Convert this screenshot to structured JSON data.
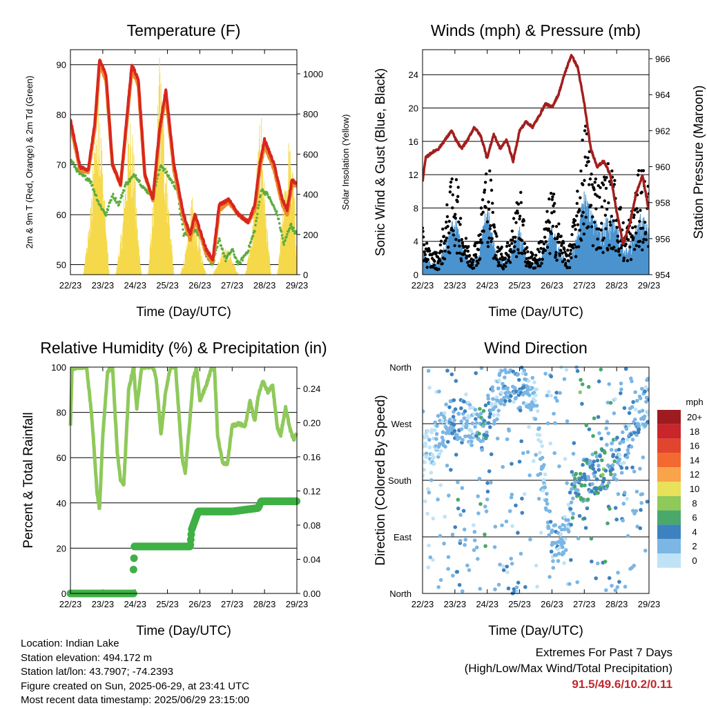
{
  "x_ticks": [
    "22/23",
    "23/23",
    "24/23",
    "25/23",
    "26/23",
    "27/23",
    "28/23",
    "29/23"
  ],
  "chart_data": [
    {
      "type": "line",
      "title": "Temperature (F)",
      "xlabel": "Time (Day/UTC)",
      "ylabel": "2m & 9m T (Red, Orange) & 2m Td (Green)",
      "y2label": "Solar Insolation (Yellow)",
      "ylim": [
        48,
        93
      ],
      "y_ticks": [
        50,
        60,
        70,
        80,
        90
      ],
      "y2lim": [
        0,
        1120
      ],
      "y2_ticks": [
        0,
        200,
        400,
        600,
        800,
        1000
      ],
      "series": [
        {
          "color": "#d8261f",
          "x": [
            22.0,
            22.3,
            22.55,
            22.75,
            22.9,
            23.1,
            23.3,
            23.55,
            23.75,
            23.9,
            24.1,
            24.3,
            24.55,
            24.75,
            24.95,
            25.2,
            25.5,
            25.7,
            25.85,
            26.0,
            26.2,
            26.4,
            26.6,
            26.9,
            27.2,
            27.5,
            27.7,
            27.85,
            28.0,
            28.3,
            28.55,
            28.7,
            28.85,
            29.0
          ],
          "y": [
            79,
            69.5,
            69,
            78,
            91,
            88,
            70,
            66,
            80,
            90,
            87,
            68,
            63,
            77,
            85,
            70,
            60,
            56,
            60,
            57,
            53,
            51,
            62,
            63,
            60,
            58.5,
            62,
            70,
            75,
            70,
            63,
            61,
            67,
            66
          ]
        },
        {
          "color": "#ee8a2c",
          "x": [
            22.0,
            22.3,
            22.55,
            22.75,
            22.9,
            23.1,
            23.3,
            23.55,
            23.75,
            23.9,
            24.1,
            24.3,
            24.55,
            24.75,
            24.95,
            25.2,
            25.5,
            25.7,
            25.85,
            26.0,
            26.2,
            26.4,
            26.6,
            26.9,
            27.2,
            27.5,
            27.7,
            27.85,
            28.0,
            28.3,
            28.55,
            28.7,
            28.85,
            29.0
          ],
          "y": [
            78,
            69,
            68.5,
            77,
            90,
            87,
            70,
            66,
            79,
            89,
            86,
            68,
            63,
            76,
            84,
            69,
            59,
            55,
            59,
            56.5,
            52,
            50.5,
            61,
            62.5,
            60,
            58.5,
            61,
            69,
            74,
            69,
            62,
            60,
            66,
            66
          ]
        },
        {
          "color": "#5cad3d",
          "dotted": true,
          "x": [
            22.0,
            22.3,
            22.6,
            22.9,
            23.1,
            23.3,
            23.5,
            23.7,
            24.0,
            24.3,
            24.55,
            24.8,
            25.0,
            25.3,
            25.5,
            25.8,
            26.0,
            26.2,
            26.4,
            26.6,
            26.8,
            27.0,
            27.2,
            27.5,
            27.7,
            27.9,
            28.1,
            28.4,
            28.6,
            28.8,
            29.0
          ],
          "y": [
            71,
            68,
            67,
            62,
            60,
            64,
            62,
            66,
            68,
            65,
            64,
            70,
            68,
            65,
            56,
            57,
            56,
            52,
            50,
            55,
            51,
            53,
            50,
            53,
            57,
            65,
            64,
            60,
            54,
            58,
            56
          ]
        },
        {
          "color": "#f5d94a",
          "name": "solar",
          "axis": "y2",
          "x": [
            22.0,
            22.2,
            22.4,
            22.6,
            22.75,
            22.9,
            23.05,
            23.2,
            23.4,
            23.6,
            23.75,
            23.9,
            24.05,
            24.2,
            24.4,
            24.6,
            24.75,
            24.9,
            25.05,
            25.2,
            25.4,
            25.6,
            25.75,
            25.9,
            26.05,
            26.2,
            26.4,
            26.6,
            26.75,
            26.9,
            27.05,
            27.2,
            27.4,
            27.6,
            27.75,
            27.9,
            28.05,
            28.2,
            28.4,
            28.6,
            28.75,
            28.9,
            29.0
          ],
          "y": [
            0,
            0,
            0,
            300,
            700,
            980,
            400,
            0,
            0,
            250,
            650,
            900,
            300,
            0,
            0,
            500,
            1120,
            800,
            350,
            0,
            0,
            150,
            400,
            300,
            120,
            0,
            0,
            80,
            150,
            120,
            60,
            0,
            0,
            200,
            550,
            850,
            300,
            0,
            0,
            400,
            700,
            500,
            100
          ]
        }
      ]
    },
    {
      "type": "scatter",
      "title": "Winds (mph) & Pressure (mb)",
      "xlabel": "Time (Day/UTC)",
      "ylabel": "Sonic Wind & Gust (Blue, Black)",
      "y2label": "Station Pressure (Maroon)",
      "ylim": [
        0,
        27
      ],
      "y_ticks": [
        0,
        4,
        8,
        12,
        16,
        20,
        24
      ],
      "y2lim": [
        954,
        966.5
      ],
      "y2_ticks": [
        954,
        956,
        958,
        960,
        962,
        964,
        966
      ],
      "pressure": {
        "color": "#a31e1e",
        "x": [
          22.0,
          22.1,
          22.3,
          22.5,
          22.7,
          22.9,
          23.0,
          23.2,
          23.4,
          23.6,
          23.8,
          24.0,
          24.2,
          24.4,
          24.6,
          24.8,
          25.0,
          25.2,
          25.4,
          25.6,
          25.8,
          26.0,
          26.2,
          26.4,
          26.6,
          26.8,
          27.0,
          27.2,
          27.4,
          27.6,
          27.8,
          28.0,
          28.2,
          28.4,
          28.6,
          28.8,
          29.0
        ],
        "y": [
          959.2,
          960.5,
          960.8,
          961.0,
          961.5,
          962.0,
          961.6,
          961.0,
          961.5,
          962.2,
          961.7,
          960.5,
          961.8,
          961.0,
          961.5,
          960.3,
          962.0,
          962.5,
          962.2,
          962.8,
          963.5,
          963.3,
          964.0,
          965.2,
          966.2,
          965.5,
          963.5,
          961.0,
          960.0,
          960.3,
          959.6,
          957.5,
          955.7,
          956.8,
          958.5,
          959.5,
          957.5
        ]
      },
      "sonic_color": "#4a93cf",
      "gust_color": "#000000",
      "sonic_mean": {
        "x": [
          22.0,
          22.25,
          22.5,
          22.75,
          23.0,
          23.25,
          23.5,
          23.75,
          24.0,
          24.25,
          24.5,
          24.75,
          25.0,
          25.25,
          25.5,
          25.75,
          26.0,
          26.25,
          26.5,
          26.75,
          27.0,
          27.25,
          27.5,
          27.75,
          28.0,
          28.25,
          28.5,
          28.75,
          29.0
        ],
        "y": [
          2,
          1,
          1,
          3,
          5,
          2,
          1,
          2,
          6,
          2,
          1,
          2,
          4,
          1,
          1,
          2,
          4,
          2,
          1,
          3,
          7,
          5,
          4,
          5,
          4,
          2,
          3,
          5,
          4
        ]
      }
    },
    {
      "type": "line",
      "title": "Relative Humidity (%) & Precipitation (in)",
      "xlabel": "Time (Day/UTC)",
      "ylabel": "Percent & Total Rainfall",
      "ylim": [
        0,
        100
      ],
      "y_ticks": [
        0,
        20,
        40,
        60,
        80,
        100
      ],
      "y2lim": [
        0,
        0.265
      ],
      "y2_ticks": [
        "0.00",
        "0.04",
        "0.08",
        "0.12",
        "0.16",
        "0.20",
        "0.24"
      ],
      "rh": {
        "color": "#8fc95a",
        "x": [
          22.0,
          22.05,
          22.2,
          22.35,
          22.5,
          22.65,
          22.75,
          22.82,
          22.9,
          23.0,
          23.15,
          23.3,
          23.45,
          23.55,
          23.65,
          23.8,
          23.95,
          24.05,
          24.2,
          24.35,
          24.55,
          24.65,
          24.8,
          24.95,
          25.1,
          25.25,
          25.45,
          25.55,
          25.7,
          25.8,
          25.9,
          26.0,
          26.2,
          26.35,
          26.45,
          26.55,
          26.7,
          26.85,
          27.0,
          27.2,
          27.4,
          27.55,
          27.7,
          27.8,
          27.95,
          28.1,
          28.25,
          28.4,
          28.5,
          28.65,
          28.8,
          28.9,
          29.0
        ],
        "y": [
          74,
          99,
          100,
          100,
          100,
          80,
          60,
          45,
          37,
          70,
          98,
          100,
          62,
          50,
          48,
          90,
          100,
          82,
          100,
          100,
          100,
          95,
          70,
          90,
          100,
          100,
          60,
          53,
          78,
          95,
          100,
          85,
          92,
          99,
          100,
          70,
          58,
          57,
          74,
          75,
          74,
          85,
          76,
          87,
          94,
          89,
          92,
          73,
          70,
          82,
          72,
          68,
          71
        ]
      },
      "precip": {
        "color": "#3fb045",
        "x": [
          22.0,
          23.95,
          23.97,
          24.1,
          25.7,
          25.75,
          25.95,
          26.1,
          26.8,
          27.0,
          27.8,
          27.9,
          28.0,
          28.5,
          29.0
        ],
        "y": [
          0.0,
          0.0,
          0.055,
          0.055,
          0.055,
          0.075,
          0.096,
          0.096,
          0.096,
          0.096,
          0.1,
          0.108,
          0.108,
          0.108,
          0.108
        ]
      },
      "precip_outlier": {
        "x": 23.95,
        "y": 0.028
      }
    },
    {
      "type": "scatter",
      "title": "Wind Direction",
      "xlabel": "Time (Day/UTC)",
      "ylabel": "Direction (Colored By Speed)",
      "y_ticks": [
        "North",
        "East",
        "South",
        "West",
        "North"
      ],
      "legend": {
        "title": "mph",
        "labels": [
          "20+",
          "18",
          "16",
          "14",
          "12",
          "10",
          "8",
          "6",
          "4",
          "2",
          "0"
        ],
        "colors": [
          "#9e1b1f",
          "#c9252b",
          "#e1452e",
          "#f26a30",
          "#f9a34a",
          "#e8e15a",
          "#8fc95a",
          "#4aa86a",
          "#3d82c0",
          "#7bb6e4",
          "#bfe3f6"
        ]
      }
    }
  ],
  "info": {
    "location": "Location: Indian Lake",
    "elevation": "Station elevation: 494.172 m",
    "latlon": "Station lat/lon: 43.7907; -74.2393",
    "created": "Figure created on Sun, 2025-06-29, at 23:41 UTC",
    "recent": "Most recent data timestamp: 2025/06/29 23:15:00"
  },
  "extremes": {
    "line1": "Extremes For Past 7 Days",
    "line2": "(High/Low/Max Wind/Total Precipitation)",
    "values": "91.5/49.6/10.2/0.11"
  }
}
